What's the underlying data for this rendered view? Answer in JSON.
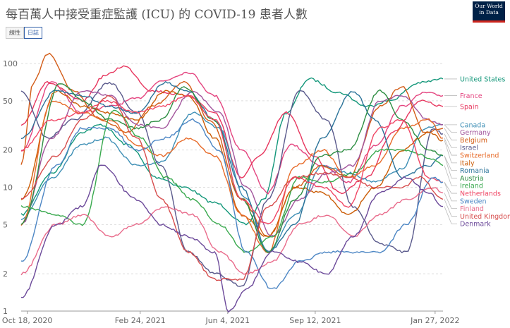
{
  "header": {
    "title": "每百萬人中接受重症監護 (ICU) 的 COVID-19 患者人數",
    "toggle_linear": "線性",
    "toggle_log": "日誌",
    "logo": "Our World in Data"
  },
  "chart_data": {
    "type": "line",
    "yscale": "log",
    "ylim": [
      1,
      130
    ],
    "yticks": [
      1,
      2,
      5,
      10,
      20,
      50,
      100
    ],
    "xlim": [
      "2020-10-11",
      "2022-02-05"
    ],
    "xticks": [
      "Oct 18, 2020",
      "Feb 24, 2021",
      "Jun 4, 2021",
      "Sep 12, 2021",
      "Jan 27, 2022"
    ],
    "xtick_dates": [
      "2020-10-18",
      "2021-02-24",
      "2021-06-04",
      "2021-09-12",
      "2022-01-27"
    ],
    "grid": true,
    "legend": "right",
    "series": [
      {
        "name": "United States",
        "color": "#13977a",
        "x": [
          "2020-10-11",
          "2020-11-15",
          "2020-12-20",
          "2021-01-10",
          "2021-02-10",
          "2021-03-15",
          "2021-04-15",
          "2021-05-20",
          "2021-06-25",
          "2021-07-15",
          "2021-08-10",
          "2021-09-05",
          "2021-10-10",
          "2021-11-10",
          "2021-12-05",
          "2022-01-10",
          "2022-02-05"
        ],
        "y": [
          6,
          13,
          28,
          32,
          22,
          12,
          10,
          7.5,
          5,
          8,
          40,
          75,
          58,
          45,
          50,
          70,
          75
        ]
      },
      {
        "name": "France",
        "color": "#e4447f",
        "x": [
          "2020-10-11",
          "2020-11-15",
          "2020-12-20",
          "2021-01-20",
          "2021-02-20",
          "2021-03-20",
          "2021-04-20",
          "2021-05-20",
          "2021-06-20",
          "2021-07-20",
          "2021-08-15",
          "2021-09-20",
          "2021-10-20",
          "2021-11-20",
          "2021-12-20",
          "2022-01-15",
          "2022-02-05"
        ],
        "y": [
          20,
          70,
          40,
          45,
          52,
          72,
          85,
          55,
          20,
          9,
          22,
          15,
          11,
          22,
          45,
          58,
          55
        ]
      },
      {
        "name": "Spain",
        "color": "#e7365e",
        "x": [
          "2020-10-11",
          "2020-11-10",
          "2020-12-20",
          "2021-01-15",
          "2021-02-05",
          "2021-03-10",
          "2021-04-20",
          "2021-05-20",
          "2021-06-20",
          "2021-07-10",
          "2021-08-10",
          "2021-09-10",
          "2021-10-10",
          "2021-11-10",
          "2021-12-10",
          "2022-01-10",
          "2022-02-05"
        ],
        "y": [
          32,
          70,
          50,
          80,
          95,
          60,
          55,
          40,
          12,
          18,
          40,
          18,
          9,
          12,
          28,
          50,
          45
        ]
      },
      {
        "name": "Canada",
        "color": "#3e8fb5",
        "x": [
          "2020-10-11",
          "2020-11-15",
          "2020-12-20",
          "2021-01-15",
          "2021-02-20",
          "2021-03-20",
          "2021-04-25",
          "2021-05-25",
          "2021-06-25",
          "2021-07-20",
          "2021-08-20",
          "2021-09-20",
          "2021-10-20",
          "2021-11-20",
          "2021-12-20",
          "2022-01-15",
          "2022-02-05"
        ],
        "y": [
          5.5,
          12,
          22,
          25,
          15,
          16,
          40,
          30,
          8,
          3,
          6,
          15,
          13,
          11,
          14,
          30,
          32
        ]
      },
      {
        "name": "Belgium",
        "color": "#d35c17",
        "x": [
          "2020-10-11",
          "2020-10-25",
          "2020-11-10",
          "2020-12-10",
          "2021-01-10",
          "2021-02-10",
          "2021-03-10",
          "2021-04-15",
          "2021-05-15",
          "2021-06-20",
          "2021-07-20",
          "2021-08-20",
          "2021-09-20",
          "2021-10-20",
          "2021-11-25",
          "2021-12-20",
          "2022-01-15",
          "2022-02-05"
        ],
        "y": [
          15,
          70,
          120,
          60,
          35,
          28,
          45,
          70,
          35,
          8,
          4,
          10,
          15,
          12,
          45,
          65,
          28,
          30
        ]
      },
      {
        "name": "Israel",
        "color": "#5a5a8c",
        "x": [
          "2020-10-11",
          "2020-11-10",
          "2020-12-10",
          "2021-01-20",
          "2021-02-20",
          "2021-03-20",
          "2021-04-20",
          "2021-05-20",
          "2021-06-20",
          "2021-07-20",
          "2021-08-25",
          "2021-09-25",
          "2021-10-25",
          "2021-11-25",
          "2021-12-25",
          "2022-01-25",
          "2022-02-05"
        ],
        "y": [
          60,
          25,
          35,
          70,
          40,
          15,
          3,
          2,
          1.6,
          8,
          60,
          35,
          7,
          3.5,
          3,
          30,
          27
        ]
      },
      {
        "name": "Italy",
        "color": "#cb5c06",
        "x": [
          "2020-10-11",
          "2020-11-20",
          "2020-12-20",
          "2021-01-20",
          "2021-02-20",
          "2021-03-25",
          "2021-04-20",
          "2021-05-20",
          "2021-06-20",
          "2021-07-20",
          "2021-08-20",
          "2021-09-20",
          "2021-10-20",
          "2021-11-20",
          "2021-12-20",
          "2022-01-20",
          "2022-02-05"
        ],
        "y": [
          8,
          60,
          45,
          40,
          35,
          60,
          55,
          25,
          6,
          4,
          10,
          9,
          6,
          10,
          20,
          28,
          24
        ]
      },
      {
        "name": "Germany",
        "color": "#a2559c",
        "x": [
          "2020-10-11",
          "2020-11-15",
          "2020-12-20",
          "2021-01-20",
          "2021-02-20",
          "2021-03-20",
          "2021-04-25",
          "2021-05-25",
          "2021-06-25",
          "2021-07-25",
          "2021-08-25",
          "2021-09-25",
          "2021-10-25",
          "2021-11-25",
          "2021-12-20",
          "2022-01-20",
          "2022-02-05"
        ],
        "y": [
          5,
          25,
          60,
          55,
          32,
          30,
          60,
          40,
          10,
          4,
          8,
          13,
          15,
          50,
          55,
          35,
          32
        ]
      },
      {
        "name": "Switzerland",
        "color": "#e76c2b",
        "x": [
          "2020-10-11",
          "2020-11-15",
          "2020-12-20",
          "2021-01-20",
          "2021-02-20",
          "2021-03-20",
          "2021-04-20",
          "2021-05-20",
          "2021-06-20",
          "2021-07-20",
          "2021-08-20",
          "2021-09-20",
          "2021-10-20",
          "2021-11-20",
          "2021-12-20",
          "2022-01-20",
          "2022-02-05"
        ],
        "y": [
          5,
          50,
          40,
          35,
          22,
          18,
          25,
          18,
          6,
          3,
          15,
          20,
          12,
          15,
          30,
          35,
          25
        ]
      },
      {
        "name": "Romania",
        "color": "#2b7399",
        "x": [
          "2020-10-11",
          "2020-11-20",
          "2020-12-20",
          "2021-01-20",
          "2021-02-20",
          "2021-03-25",
          "2021-04-20",
          "2021-05-20",
          "2021-06-20",
          "2021-07-20",
          "2021-08-20",
          "2021-09-20",
          "2021-10-25",
          "2021-11-20",
          "2021-12-20",
          "2022-01-20",
          "2022-02-05"
        ],
        "y": [
          25,
          60,
          55,
          45,
          40,
          70,
          60,
          35,
          10,
          3,
          5,
          25,
          60,
          35,
          12,
          15,
          18
        ]
      },
      {
        "name": "Austria",
        "color": "#2e8e43",
        "x": [
          "2020-10-11",
          "2020-11-25",
          "2020-12-20",
          "2021-01-20",
          "2021-02-20",
          "2021-03-20",
          "2021-04-15",
          "2021-05-20",
          "2021-06-20",
          "2021-07-20",
          "2021-08-20",
          "2021-09-20",
          "2021-10-20",
          "2021-11-25",
          "2021-12-20",
          "2022-01-20",
          "2022-02-05"
        ],
        "y": [
          5,
          70,
          50,
          35,
          30,
          35,
          65,
          35,
          8,
          3,
          8,
          18,
          20,
          60,
          35,
          20,
          18
        ]
      },
      {
        "name": "Ireland",
        "color": "#39a94e",
        "x": [
          "2020-10-11",
          "2020-11-20",
          "2020-12-20",
          "2021-01-25",
          "2021-02-25",
          "2021-03-25",
          "2021-04-25",
          "2021-05-25",
          "2021-06-25",
          "2021-07-25",
          "2021-08-25",
          "2021-09-25",
          "2021-10-25",
          "2021-11-25",
          "2021-12-25",
          "2022-01-25",
          "2022-02-05"
        ],
        "y": [
          7,
          6,
          5,
          42,
          25,
          12,
          8,
          5,
          3,
          4,
          12,
          11,
          13,
          20,
          20,
          17,
          15
        ]
      },
      {
        "name": "Netherlands",
        "color": "#f04765",
        "x": [
          "2020-10-11",
          "2020-11-15",
          "2020-12-20",
          "2021-01-15",
          "2021-02-20",
          "2021-03-20",
          "2021-04-20",
          "2021-05-20",
          "2021-06-20",
          "2021-07-20",
          "2021-08-20",
          "2021-09-20",
          "2021-10-20",
          "2021-11-25",
          "2021-12-20",
          "2022-01-20",
          "2022-02-05"
        ],
        "y": [
          20,
          35,
          40,
          50,
          40,
          45,
          55,
          35,
          8,
          5,
          12,
          10,
          7,
          30,
          35,
          12,
          11
        ]
      },
      {
        "name": "Sweden",
        "color": "#4c86c4",
        "x": [
          "2020-10-11",
          "2020-11-20",
          "2020-12-20",
          "2021-01-20",
          "2021-02-20",
          "2021-03-25",
          "2021-04-25",
          "2021-05-25",
          "2021-06-25",
          "2021-07-25",
          "2021-08-25",
          "2021-09-25",
          "2021-10-25",
          "2021-11-25",
          "2021-12-25",
          "2022-01-25",
          "2022-02-05"
        ],
        "y": [
          2.5,
          15,
          30,
          30,
          20,
          25,
          35,
          20,
          3,
          1.5,
          2.5,
          3,
          3,
          3,
          5,
          12,
          11
        ]
      },
      {
        "name": "Finland",
        "color": "#e96b8b",
        "x": [
          "2020-10-11",
          "2020-11-20",
          "2020-12-20",
          "2021-01-20",
          "2021-02-20",
          "2021-03-25",
          "2021-04-25",
          "2021-05-25",
          "2021-06-25",
          "2021-07-25",
          "2021-08-25",
          "2021-09-25",
          "2021-10-25",
          "2021-11-25",
          "2021-12-25",
          "2022-01-25",
          "2022-02-05"
        ],
        "y": [
          2,
          5,
          6,
          4,
          5,
          7,
          6,
          3,
          2,
          2.5,
          5,
          6,
          4,
          6,
          8,
          10,
          9
        ]
      },
      {
        "name": "United Kingdom",
        "color": "#d74e4e",
        "x": [
          "2020-10-11",
          "2020-11-20",
          "2020-12-20",
          "2021-01-20",
          "2021-02-20",
          "2021-03-20",
          "2021-04-20",
          "2021-05-20",
          "2021-06-20",
          "2021-07-20",
          "2021-08-20",
          "2021-09-20",
          "2021-10-20",
          "2021-11-20",
          "2021-12-20",
          "2022-01-10",
          "2022-02-05"
        ],
        "y": [
          8,
          18,
          35,
          55,
          25,
          8,
          3,
          1.8,
          1.8,
          7,
          12,
          13,
          12,
          10,
          10,
          12,
          8
        ]
      },
      {
        "name": "Denmark",
        "color": "#6c4a9a",
        "x": [
          "2020-10-11",
          "2020-11-20",
          "2020-12-20",
          "2021-01-10",
          "2021-02-20",
          "2021-03-20",
          "2021-04-20",
          "2021-05-20",
          "2021-06-05",
          "2021-06-25",
          "2021-07-25",
          "2021-08-25",
          "2021-09-25",
          "2021-10-25",
          "2021-11-25",
          "2021-12-25",
          "2022-01-20",
          "2022-02-05"
        ],
        "y": [
          1.3,
          5,
          7,
          15,
          8,
          5,
          4,
          3,
          1,
          1.5,
          3,
          2.5,
          2,
          4,
          9,
          12,
          9,
          7
        ]
      }
    ]
  }
}
